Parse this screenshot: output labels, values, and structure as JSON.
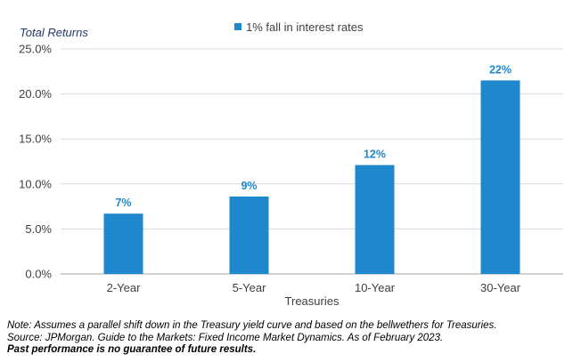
{
  "chart_data": {
    "type": "bar",
    "ylabel": "Total Returns",
    "xlabel": "Treasuries",
    "categories": [
      "2-Year",
      "5-Year",
      "10-Year",
      "30-Year"
    ],
    "series": [
      {
        "name": "1% fall in interest rates",
        "values": [
          6.7,
          8.6,
          12.1,
          21.5
        ],
        "data_labels": [
          "7%",
          "9%",
          "12%",
          "22%"
        ]
      }
    ],
    "ylim": [
      0,
      25
    ],
    "yticks": [
      0,
      5,
      10,
      15,
      20,
      25
    ],
    "ytick_labels": [
      "0.0%",
      "5.0%",
      "10.0%",
      "15.0%",
      "20.0%",
      "25.0%"
    ],
    "grid": true,
    "legend": "top-center",
    "colors": {
      "bar": "#1f87cb",
      "label": "#1f87cb",
      "grid": "#d9d9d9",
      "axis_text": "#404040"
    }
  },
  "notes": {
    "line1": "Note: Assumes a parallel shift down in the Treasury yield curve and based on the bellwethers for Treasuries.",
    "line2": "Source: JPMorgan. Guide to the Markets: Fixed Income Market Dynamics. As of February 2023.",
    "line3": "Past performance is no guarantee of future results."
  }
}
